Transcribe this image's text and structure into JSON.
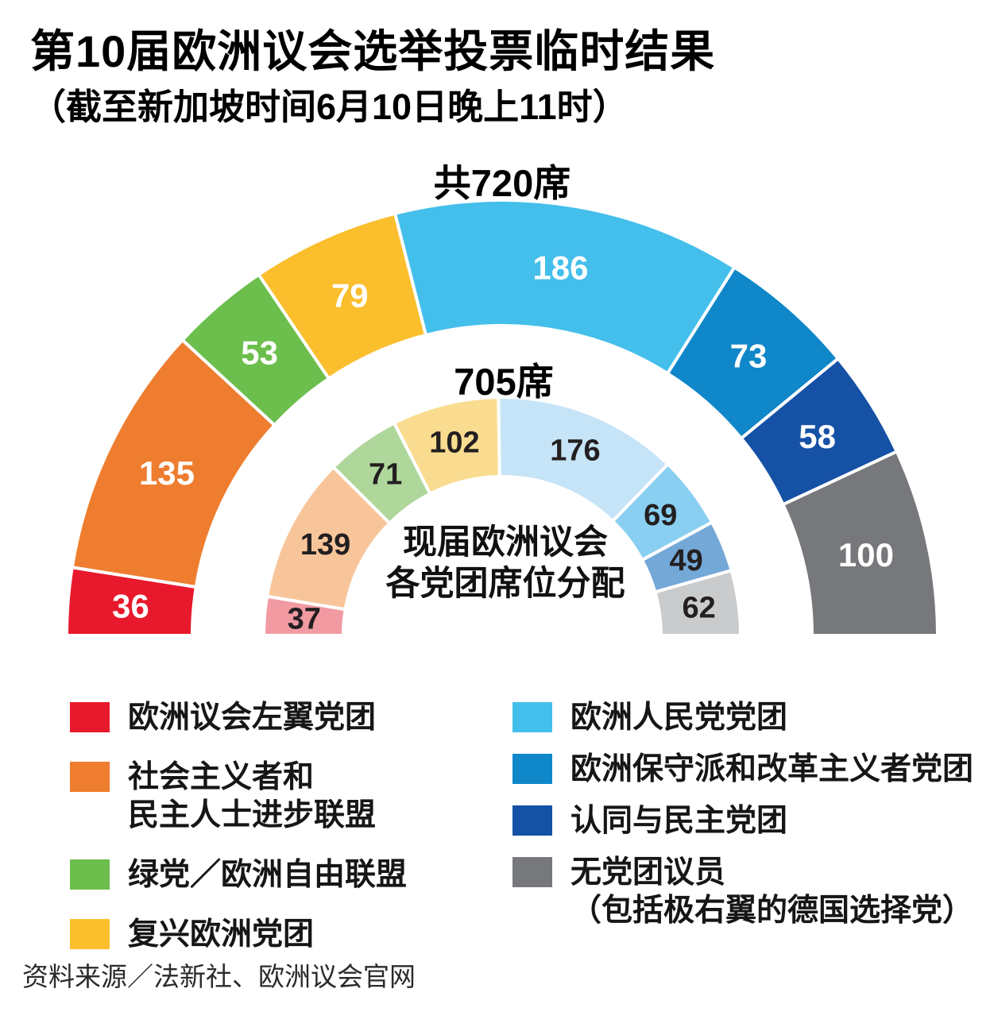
{
  "title": "第10届欧洲议会选举投票临时结果",
  "subtitle": "（截至新加坡时间6月10日晚上11时）",
  "source": "资料来源／法新社、欧洲议会官网",
  "chart_data": {
    "type": "pie",
    "variant": "semicircle-double-donut",
    "groups": [
      "欧洲议会左翼党团",
      "社会主义者和民主人士进步联盟",
      "绿党／欧洲自由联盟",
      "复兴欧洲党团",
      "欧洲人民党党团",
      "欧洲保守派和改革主义者党团",
      "认同与民主党团",
      "无党团议员（包括极右翼的德国选择党）"
    ],
    "group_ids": [
      "left",
      "sd",
      "greens-efa",
      "renew",
      "epp",
      "ecr",
      "id",
      "ni"
    ],
    "outer_ring": {
      "title": "共720席",
      "total": 720,
      "values": [
        36,
        135,
        53,
        79,
        186,
        73,
        58,
        100
      ],
      "colors": [
        "#E8192C",
        "#EE7D2F",
        "#6CBE4D",
        "#FBBE2C",
        "#44BFEC",
        "#0F87C9",
        "#1551A5",
        "#77787B"
      ],
      "value_label_color": "#FFFFFF"
    },
    "inner_ring": {
      "title": "705席",
      "total": 705,
      "center_caption": [
        "现届欧洲议会",
        "各党团席位分配"
      ],
      "values": [
        37,
        139,
        71,
        102,
        176,
        69,
        49,
        62
      ],
      "colors": [
        "#F29AA2",
        "#F8C59B",
        "#AFD79B",
        "#FADC90",
        "#C6E4F7",
        "#89CFF1",
        "#74A8D7",
        "#C9CBCD"
      ],
      "value_label_color": "#231F20"
    }
  },
  "legend": {
    "left": [
      {
        "color": "#E8192C",
        "lines": [
          "欧洲议会左翼党团"
        ]
      },
      {
        "color": "#EE7D2F",
        "lines": [
          "社会主义者和",
          "民主人士进步联盟"
        ]
      },
      {
        "color": "#6CBE4D",
        "lines": [
          "绿党／欧洲自由联盟"
        ]
      },
      {
        "color": "#FBBE2C",
        "lines": [
          "复兴欧洲党团"
        ]
      }
    ],
    "right": [
      {
        "color": "#44BFEC",
        "lines": [
          "欧洲人民党党团"
        ]
      },
      {
        "color": "#0F87C9",
        "lines": [
          "欧洲保守派和改革主义者党团"
        ]
      },
      {
        "color": "#1551A5",
        "lines": [
          "认同与民主党团"
        ]
      },
      {
        "color": "#77787B",
        "lines": [
          "无党团议员",
          "（包括极右翼的德国选择党）"
        ]
      }
    ]
  }
}
